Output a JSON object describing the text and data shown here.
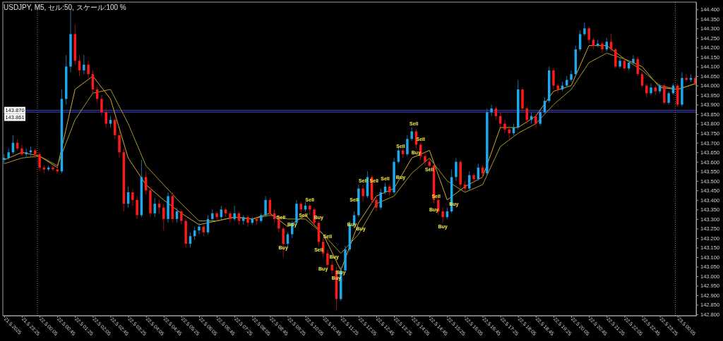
{
  "chart_data": {
    "type": "candlestick",
    "title": "USDJPY, M5, セル:50, スケール:100 %",
    "x": [
      "2025-05-21T22:45",
      "2025-05-21T22:55",
      "2025-05-21T23:05",
      "2025-05-21T23:15",
      "2025-05-21T23:25",
      "2025-05-21T23:35",
      "2025-05-21T23:45",
      "2025-05-21T23:55",
      "2025-05-22T00:05",
      "2025-05-22T00:15",
      "2025-05-22T00:25",
      "2025-05-22T00:35",
      "2025-05-22T00:45",
      "2025-05-22T00:55",
      "2025-05-22T01:05",
      "2025-05-22T01:15",
      "2025-05-22T01:25",
      "2025-05-22T01:35",
      "2025-05-22T01:45",
      "2025-05-22T01:55",
      "2025-05-22T02:05",
      "2025-05-22T02:15",
      "2025-05-22T02:25",
      "2025-05-22T02:35",
      "2025-05-22T02:45",
      "2025-05-22T02:55",
      "2025-05-22T03:05",
      "2025-05-22T03:15",
      "2025-05-22T03:25",
      "2025-05-22T03:35",
      "2025-05-22T03:45",
      "2025-05-22T03:55",
      "2025-05-22T04:05",
      "2025-05-22T04:15",
      "2025-05-22T04:25",
      "2025-05-22T04:35",
      "2025-05-22T04:45",
      "2025-05-22T04:55",
      "2025-05-22T05:05",
      "2025-05-22T05:15",
      "2025-05-22T05:25",
      "2025-05-22T05:35",
      "2025-05-22T05:45",
      "2025-05-22T05:55",
      "2025-05-22T06:05",
      "2025-05-22T06:15",
      "2025-05-22T06:25",
      "2025-05-22T06:35",
      "2025-05-22T06:45",
      "2025-05-22T06:55",
      "2025-05-22T07:05",
      "2025-05-22T07:15",
      "2025-05-22T07:25",
      "2025-05-22T07:35",
      "2025-05-22T07:45",
      "2025-05-22T07:55",
      "2025-05-22T08:05",
      "2025-05-22T08:15",
      "2025-05-22T08:25",
      "2025-05-22T08:35",
      "2025-05-22T08:45",
      "2025-05-22T08:55",
      "2025-05-22T09:05",
      "2025-05-22T09:15",
      "2025-05-22T09:25",
      "2025-05-22T09:35",
      "2025-05-22T09:45",
      "2025-05-22T09:55",
      "2025-05-22T10:05",
      "2025-05-22T10:15",
      "2025-05-22T10:25",
      "2025-05-22T10:35",
      "2025-05-22T10:45",
      "2025-05-22T10:55",
      "2025-05-22T11:05",
      "2025-05-22T11:15",
      "2025-05-22T11:25",
      "2025-05-22T11:35",
      "2025-05-22T11:45",
      "2025-05-22T11:55",
      "2025-05-22T12:05",
      "2025-05-22T12:15",
      "2025-05-22T12:25",
      "2025-05-22T12:35",
      "2025-05-22T12:45",
      "2025-05-22T12:55",
      "2025-05-22T13:05",
      "2025-05-22T13:15",
      "2025-05-22T13:25",
      "2025-05-22T13:35",
      "2025-05-22T13:45",
      "2025-05-22T13:55",
      "2025-05-22T14:05",
      "2025-05-22T14:15",
      "2025-05-22T14:25",
      "2025-05-22T14:35",
      "2025-05-22T14:45",
      "2025-05-22T14:55",
      "2025-05-22T15:05",
      "2025-05-22T15:15",
      "2025-05-22T15:25",
      "2025-05-22T15:35",
      "2025-05-22T15:45",
      "2025-05-22T15:55",
      "2025-05-22T16:05",
      "2025-05-22T16:15",
      "2025-05-22T16:25",
      "2025-05-22T16:35",
      "2025-05-22T16:45",
      "2025-05-22T16:55",
      "2025-05-22T17:05",
      "2025-05-22T17:15",
      "2025-05-22T17:25",
      "2025-05-22T17:35",
      "2025-05-22T17:45",
      "2025-05-22T17:55",
      "2025-05-22T18:05",
      "2025-05-22T18:15",
      "2025-05-22T18:25",
      "2025-05-22T18:35",
      "2025-05-22T18:45",
      "2025-05-22T18:55",
      "2025-05-22T19:05",
      "2025-05-22T19:15",
      "2025-05-22T19:25",
      "2025-05-22T19:35",
      "2025-05-22T19:45",
      "2025-05-22T19:55",
      "2025-05-22T20:05",
      "2025-05-22T20:15",
      "2025-05-22T20:25",
      "2025-05-22T20:35",
      "2025-05-22T20:45",
      "2025-05-22T20:55",
      "2025-05-22T21:05",
      "2025-05-22T21:15",
      "2025-05-22T21:25",
      "2025-05-22T21:35",
      "2025-05-22T21:45",
      "2025-05-22T21:55",
      "2025-05-22T22:05",
      "2025-05-22T22:15",
      "2025-05-22T22:25",
      "2025-05-22T22:35",
      "2025-05-22T22:45",
      "2025-05-22T22:55",
      "2025-05-22T23:05",
      "2025-05-22T23:15",
      "2025-05-22T23:25",
      "2025-05-22T23:35",
      "2025-05-22T23:45",
      "2025-05-22T23:55",
      "2025-05-23T00:05",
      "2025-05-23T00:15",
      "2025-05-23T00:25",
      "2025-05-23T00:35",
      "2025-05-23T00:45"
    ],
    "ohlc": [
      [
        143.61,
        143.64,
        143.59,
        143.62
      ],
      [
        143.62,
        143.67,
        143.61,
        143.65
      ],
      [
        143.65,
        143.74,
        143.64,
        143.7
      ],
      [
        143.7,
        143.72,
        143.66,
        143.67
      ],
      [
        143.67,
        143.69,
        143.63,
        143.64
      ],
      [
        143.64,
        143.67,
        143.62,
        143.65
      ],
      [
        143.65,
        143.68,
        143.63,
        143.66
      ],
      [
        143.66,
        143.67,
        143.62,
        143.64
      ],
      [
        143.64,
        143.65,
        143.55,
        143.57
      ],
      [
        143.57,
        143.58,
        143.54,
        143.56
      ],
      [
        143.56,
        143.58,
        143.55,
        143.57
      ],
      [
        143.57,
        143.58,
        143.55,
        143.56
      ],
      [
        143.56,
        143.58,
        143.54,
        143.55
      ],
      [
        143.55,
        143.98,
        143.54,
        143.93
      ],
      [
        143.93,
        144.16,
        143.9,
        144.1
      ],
      [
        144.1,
        144.4,
        144.07,
        144.27
      ],
      [
        144.27,
        144.32,
        144.11,
        144.13
      ],
      [
        144.13,
        144.16,
        144.05,
        144.08
      ],
      [
        144.08,
        144.16,
        144.06,
        144.11
      ],
      [
        144.11,
        144.13,
        144.04,
        144.06
      ],
      [
        144.06,
        144.08,
        143.96,
        143.98
      ],
      [
        143.98,
        144.0,
        143.91,
        143.93
      ],
      [
        143.93,
        143.95,
        143.84,
        143.86
      ],
      [
        143.86,
        143.88,
        143.78,
        143.8
      ],
      [
        143.8,
        143.84,
        143.78,
        143.82
      ],
      [
        143.82,
        143.83,
        143.72,
        143.74
      ],
      [
        143.74,
        143.76,
        143.62,
        143.65
      ],
      [
        143.65,
        143.67,
        143.34,
        143.38
      ],
      [
        143.38,
        143.47,
        143.36,
        143.44
      ],
      [
        143.44,
        143.46,
        143.37,
        143.4
      ],
      [
        143.4,
        143.42,
        143.3,
        143.32
      ],
      [
        143.32,
        143.61,
        143.31,
        143.52
      ],
      [
        143.52,
        143.55,
        143.43,
        143.45
      ],
      [
        143.45,
        143.47,
        143.31,
        143.33
      ],
      [
        143.33,
        143.41,
        143.31,
        143.38
      ],
      [
        143.38,
        143.4,
        143.33,
        143.36
      ],
      [
        143.36,
        143.38,
        143.24,
        143.3
      ],
      [
        143.3,
        143.44,
        143.28,
        143.42
      ],
      [
        143.42,
        143.44,
        143.28,
        143.3
      ],
      [
        143.3,
        143.36,
        143.28,
        143.34
      ],
      [
        143.34,
        143.35,
        143.27,
        143.29
      ],
      [
        143.29,
        143.3,
        143.15,
        143.17
      ],
      [
        143.17,
        143.23,
        143.15,
        143.21
      ],
      [
        143.21,
        143.26,
        143.19,
        143.24
      ],
      [
        143.24,
        143.28,
        143.22,
        143.26
      ],
      [
        143.26,
        143.27,
        143.21,
        143.23
      ],
      [
        143.23,
        143.32,
        143.22,
        143.3
      ],
      [
        143.3,
        143.35,
        143.29,
        143.33
      ],
      [
        143.33,
        143.34,
        143.29,
        143.31
      ],
      [
        143.31,
        143.37,
        143.3,
        143.35
      ],
      [
        143.35,
        143.36,
        143.31,
        143.33
      ],
      [
        143.33,
        143.34,
        143.28,
        143.3
      ],
      [
        143.3,
        143.37,
        143.29,
        143.33
      ],
      [
        143.33,
        143.34,
        143.27,
        143.29
      ],
      [
        143.29,
        143.32,
        143.27,
        143.31
      ],
      [
        143.31,
        143.32,
        143.26,
        143.28
      ],
      [
        143.28,
        143.31,
        143.27,
        143.3
      ],
      [
        143.3,
        143.31,
        143.27,
        143.29
      ],
      [
        143.29,
        143.33,
        143.28,
        143.32
      ],
      [
        143.32,
        143.42,
        143.31,
        143.4
      ],
      [
        143.4,
        143.41,
        143.31,
        143.33
      ],
      [
        143.33,
        143.35,
        143.28,
        143.3
      ],
      [
        143.3,
        143.31,
        143.23,
        143.25
      ],
      [
        143.25,
        143.26,
        143.1,
        143.17
      ],
      [
        143.17,
        143.23,
        143.15,
        143.22
      ],
      [
        143.22,
        143.29,
        143.2,
        143.28
      ],
      [
        143.28,
        143.4,
        143.27,
        143.38
      ],
      [
        143.38,
        143.39,
        143.33,
        143.35
      ],
      [
        143.35,
        143.39,
        143.34,
        143.37
      ],
      [
        143.37,
        143.38,
        143.32,
        143.35
      ],
      [
        143.35,
        143.36,
        143.26,
        143.28
      ],
      [
        143.28,
        143.29,
        143.16,
        143.18
      ],
      [
        143.18,
        143.2,
        143.1,
        143.12
      ],
      [
        143.12,
        143.14,
        143.04,
        143.06
      ],
      [
        143.06,
        143.08,
        143.01,
        143.03
      ],
      [
        143.03,
        143.05,
        142.82,
        142.88
      ],
      [
        142.88,
        143.05,
        142.87,
        143.03
      ],
      [
        143.03,
        143.16,
        143.02,
        143.14
      ],
      [
        143.14,
        143.29,
        143.13,
        143.27
      ],
      [
        143.27,
        143.34,
        143.25,
        143.32
      ],
      [
        143.32,
        143.48,
        143.31,
        143.46
      ],
      [
        143.46,
        143.48,
        143.39,
        143.42
      ],
      [
        143.42,
        143.55,
        143.41,
        143.52
      ],
      [
        143.52,
        143.53,
        143.38,
        143.4
      ],
      [
        143.4,
        143.42,
        143.34,
        143.36
      ],
      [
        143.36,
        143.46,
        143.35,
        143.44
      ],
      [
        143.44,
        143.49,
        143.43,
        143.47
      ],
      [
        143.47,
        143.48,
        143.42,
        143.44
      ],
      [
        143.44,
        143.62,
        143.43,
        143.6
      ],
      [
        143.6,
        143.68,
        143.59,
        143.66
      ],
      [
        143.66,
        143.67,
        143.62,
        143.64
      ],
      [
        143.64,
        143.74,
        143.63,
        143.72
      ],
      [
        143.72,
        143.78,
        143.71,
        143.76
      ],
      [
        143.76,
        143.77,
        143.67,
        143.69
      ],
      [
        143.69,
        143.7,
        143.61,
        143.63
      ],
      [
        143.63,
        143.65,
        143.58,
        143.6
      ],
      [
        143.6,
        143.62,
        143.56,
        143.58
      ],
      [
        143.58,
        143.59,
        143.38,
        143.4
      ],
      [
        143.4,
        143.42,
        143.32,
        143.34
      ],
      [
        143.34,
        143.36,
        143.28,
        143.31
      ],
      [
        143.31,
        143.36,
        143.3,
        143.34
      ],
      [
        143.34,
        143.56,
        143.33,
        143.52
      ],
      [
        143.52,
        143.62,
        143.5,
        143.6
      ],
      [
        143.6,
        143.61,
        143.46,
        143.48
      ],
      [
        143.48,
        143.5,
        143.44,
        143.46
      ],
      [
        143.46,
        143.55,
        143.45,
        143.53
      ],
      [
        143.53,
        143.54,
        143.49,
        143.51
      ],
      [
        143.51,
        143.59,
        143.5,
        143.57
      ],
      [
        143.57,
        143.58,
        143.52,
        143.54
      ],
      [
        143.54,
        143.88,
        143.53,
        143.86
      ],
      [
        143.86,
        143.9,
        143.84,
        143.88
      ],
      [
        143.88,
        143.89,
        143.82,
        143.84
      ],
      [
        143.84,
        143.86,
        143.78,
        143.8
      ],
      [
        143.8,
        143.82,
        143.75,
        143.77
      ],
      [
        143.77,
        143.79,
        143.72,
        143.75
      ],
      [
        143.75,
        143.8,
        143.74,
        143.78
      ],
      [
        143.78,
        144.03,
        143.77,
        143.98
      ],
      [
        143.98,
        143.99,
        143.86,
        143.88
      ],
      [
        143.88,
        143.89,
        143.8,
        143.82
      ],
      [
        143.82,
        143.86,
        143.8,
        143.84
      ],
      [
        143.84,
        143.85,
        143.78,
        143.8
      ],
      [
        143.8,
        143.88,
        143.79,
        143.86
      ],
      [
        143.86,
        143.94,
        143.85,
        143.92
      ],
      [
        143.92,
        144.1,
        143.91,
        144.08
      ],
      [
        144.08,
        144.09,
        143.98,
        144.0
      ],
      [
        144.0,
        144.01,
        143.96,
        143.98
      ],
      [
        143.98,
        144.02,
        143.97,
        144.0
      ],
      [
        144.0,
        144.05,
        143.99,
        144.03
      ],
      [
        144.03,
        144.08,
        144.02,
        144.06
      ],
      [
        144.06,
        144.21,
        144.05,
        144.19
      ],
      [
        144.19,
        144.29,
        144.18,
        144.27
      ],
      [
        144.27,
        144.33,
        144.26,
        144.3
      ],
      [
        144.3,
        144.31,
        144.22,
        144.24
      ],
      [
        144.24,
        144.25,
        144.19,
        144.21
      ],
      [
        144.21,
        144.24,
        144.2,
        144.22
      ],
      [
        144.22,
        144.23,
        144.17,
        144.19
      ],
      [
        144.19,
        144.25,
        144.18,
        144.23
      ],
      [
        144.23,
        144.27,
        144.18,
        144.19
      ],
      [
        144.19,
        144.2,
        144.09,
        144.1
      ],
      [
        144.1,
        144.15,
        144.09,
        144.13
      ],
      [
        144.13,
        144.14,
        144.08,
        144.09
      ],
      [
        144.09,
        144.13,
        144.08,
        144.12
      ],
      [
        144.12,
        144.16,
        144.11,
        144.14
      ],
      [
        144.14,
        144.15,
        144.05,
        144.06
      ],
      [
        144.06,
        144.07,
        143.99,
        144.0
      ],
      [
        144.0,
        144.01,
        143.94,
        143.96
      ],
      [
        143.96,
        144.01,
        143.95,
        143.99
      ],
      [
        143.99,
        144.0,
        143.95,
        143.97
      ],
      [
        143.97,
        144.01,
        143.96,
        144.0
      ],
      [
        144.0,
        144.01,
        143.9,
        143.91
      ],
      [
        143.91,
        143.97,
        143.9,
        143.96
      ],
      [
        143.96,
        144.01,
        143.95,
        144.0
      ],
      [
        144.0,
        144.01,
        143.89,
        143.9
      ],
      [
        143.9,
        144.07,
        143.89,
        144.04
      ],
      [
        144.04,
        144.06,
        144.02,
        144.03
      ],
      [
        144.03,
        144.06,
        144.02,
        144.04
      ],
      [
        144.04,
        144.05,
        144.0,
        144.01
      ]
    ],
    "series": [
      {
        "type": "line",
        "color": "#d8a830",
        "x": [
          "2025-05-21T22:45",
          "2025-05-21T23:25",
          "2025-05-22T00:05",
          "2025-05-22T00:45",
          "2025-05-22T01:25",
          "2025-05-22T02:05",
          "2025-05-22T02:45",
          "2025-05-22T03:25",
          "2025-05-22T04:05",
          "2025-05-22T04:45",
          "2025-05-22T05:25",
          "2025-05-22T06:05",
          "2025-05-22T06:45",
          "2025-05-22T07:25",
          "2025-05-22T08:05",
          "2025-05-22T08:45",
          "2025-05-22T09:25",
          "2025-05-22T10:05",
          "2025-05-22T10:45",
          "2025-05-22T11:25",
          "2025-05-22T12:05",
          "2025-05-22T12:45",
          "2025-05-22T13:25",
          "2025-05-22T14:05",
          "2025-05-22T14:45",
          "2025-05-22T15:25",
          "2025-05-22T16:05",
          "2025-05-22T16:45",
          "2025-05-22T17:25",
          "2025-05-22T18:05",
          "2025-05-22T18:45",
          "2025-05-22T19:25",
          "2025-05-22T20:05",
          "2025-05-22T20:45",
          "2025-05-22T21:25",
          "2025-05-22T22:05",
          "2025-05-22T22:45",
          "2025-05-22T23:25",
          "2025-05-23T00:05",
          "2025-05-23T00:45"
        ],
        "values": [
          143.61,
          143.65,
          143.63,
          143.57,
          143.98,
          144.05,
          143.93,
          143.62,
          143.48,
          143.4,
          143.33,
          143.27,
          143.29,
          143.31,
          143.3,
          143.33,
          143.26,
          143.32,
          143.22,
          143.03,
          143.28,
          143.42,
          143.46,
          143.62,
          143.66,
          143.4,
          143.47,
          143.52,
          143.78,
          143.78,
          143.84,
          143.97,
          144.0,
          144.21,
          144.21,
          144.14,
          144.1,
          143.99,
          143.98,
          144.01
        ]
      },
      {
        "type": "line",
        "color": "#a89820",
        "x": [
          "2025-05-21T22:45",
          "2025-05-21T23:25",
          "2025-05-22T00:05",
          "2025-05-22T00:45",
          "2025-05-22T01:25",
          "2025-05-22T02:05",
          "2025-05-22T02:45",
          "2025-05-22T03:25",
          "2025-05-22T04:05",
          "2025-05-22T04:45",
          "2025-05-22T05:25",
          "2025-05-22T06:05",
          "2025-05-22T06:45",
          "2025-05-22T07:25",
          "2025-05-22T08:05",
          "2025-05-22T08:45",
          "2025-05-22T09:25",
          "2025-05-22T10:05",
          "2025-05-22T10:45",
          "2025-05-22T11:25",
          "2025-05-22T12:05",
          "2025-05-22T12:45",
          "2025-05-22T13:25",
          "2025-05-22T14:05",
          "2025-05-22T14:45",
          "2025-05-22T15:25",
          "2025-05-22T16:05",
          "2025-05-22T16:45",
          "2025-05-22T17:25",
          "2025-05-22T18:05",
          "2025-05-22T18:45",
          "2025-05-22T19:25",
          "2025-05-22T20:05",
          "2025-05-22T20:45",
          "2025-05-22T21:25",
          "2025-05-22T22:05",
          "2025-05-22T22:45",
          "2025-05-22T23:25",
          "2025-05-23T00:05",
          "2025-05-23T00:45"
        ],
        "values": [
          143.59,
          143.62,
          143.63,
          143.58,
          143.82,
          143.96,
          143.98,
          143.8,
          143.58,
          143.48,
          143.38,
          143.29,
          143.29,
          143.31,
          143.3,
          143.32,
          143.3,
          143.3,
          143.22,
          143.12,
          143.22,
          143.38,
          143.42,
          143.54,
          143.62,
          143.5,
          143.44,
          143.48,
          143.68,
          143.75,
          143.8,
          143.9,
          143.98,
          144.12,
          144.17,
          144.14,
          144.08,
          144.0,
          143.98,
          144.01
        ]
      }
    ],
    "xlim": [
      "2025-05-21T22:42",
      "2025-05-23T00:47"
    ],
    "xticks": [
      {
        "value": "2025-05-21T22:45",
        "label": "21.5.2025"
      },
      {
        "value": "2025-05-21T23:25",
        "label": "21.5 23:25"
      },
      {
        "value": "2025-05-22T00:05",
        "label": "22.5 00:05"
      },
      {
        "value": "2025-05-22T00:45",
        "label": "22.5 00:45"
      },
      {
        "value": "2025-05-22T01:25",
        "label": "22.5 01:25"
      },
      {
        "value": "2025-05-22T02:05",
        "label": "22.5 02:05"
      },
      {
        "value": "2025-05-22T02:45",
        "label": "22.5 02:45"
      },
      {
        "value": "2025-05-22T03:25",
        "label": "22.5 03:25"
      },
      {
        "value": "2025-05-22T04:05",
        "label": "22.5 04:05"
      },
      {
        "value": "2025-05-22T04:45",
        "label": "22.5 04:45"
      },
      {
        "value": "2025-05-22T05:25",
        "label": "22.5 05:25"
      },
      {
        "value": "2025-05-22T06:05",
        "label": "22.5 06:05"
      },
      {
        "value": "2025-05-22T06:45",
        "label": "22.5 06:45"
      },
      {
        "value": "2025-05-22T07:25",
        "label": "22.5 07:25"
      },
      {
        "value": "2025-05-22T08:05",
        "label": "22.5 08:05"
      },
      {
        "value": "2025-05-22T08:45",
        "label": "22.5 08:45"
      },
      {
        "value": "2025-05-22T09:25",
        "label": "22.5 09:25"
      },
      {
        "value": "2025-05-22T10:05",
        "label": "22.5 10:05"
      },
      {
        "value": "2025-05-22T10:45",
        "label": "22.5 10:45"
      },
      {
        "value": "2025-05-22T11:25",
        "label": "22.5 11:25"
      },
      {
        "value": "2025-05-22T12:05",
        "label": "22.5 12:05"
      },
      {
        "value": "2025-05-22T12:45",
        "label": "22.5 12:45"
      },
      {
        "value": "2025-05-22T13:25",
        "label": "22.5 13:25"
      },
      {
        "value": "2025-05-22T14:05",
        "label": "22.5 14:05"
      },
      {
        "value": "2025-05-22T14:45",
        "label": "22.5 14:45"
      },
      {
        "value": "2025-05-22T15:25",
        "label": "22.5 15:25"
      },
      {
        "value": "2025-05-22T16:05",
        "label": "22.5 16:05"
      },
      {
        "value": "2025-05-22T16:45",
        "label": "22.5 16:45"
      },
      {
        "value": "2025-05-22T17:25",
        "label": "22.5 17:25"
      },
      {
        "value": "2025-05-22T18:05",
        "label": "22.5 18:05"
      },
      {
        "value": "2025-05-22T18:45",
        "label": "22.5 18:45"
      },
      {
        "value": "2025-05-22T19:25",
        "label": "22.5 19:25"
      },
      {
        "value": "2025-05-22T20:05",
        "label": "22.5 20:05"
      },
      {
        "value": "2025-05-22T20:45",
        "label": "22.5 20:45"
      },
      {
        "value": "2025-05-22T21:25",
        "label": "22.5 21:25"
      },
      {
        "value": "2025-05-22T22:05",
        "label": "22.5 22:05"
      },
      {
        "value": "2025-05-22T22:45",
        "label": "22.5 22:45"
      },
      {
        "value": "2025-05-22T23:25",
        "label": "22.5 23:25"
      },
      {
        "value": "2025-05-23T00:05",
        "label": "23.5 00:05"
      }
    ],
    "ylim": [
      142.793,
      144.438
    ],
    "yticks": [
      {
        "value": 142.8,
        "label": "142.800"
      },
      {
        "value": 142.85,
        "label": "142.850"
      },
      {
        "value": 142.9,
        "label": "142.900"
      },
      {
        "value": 142.95,
        "label": "142.950"
      },
      {
        "value": 143.0,
        "label": "143.000"
      },
      {
        "value": 143.05,
        "label": "143.050"
      },
      {
        "value": 143.1,
        "label": "143.100"
      },
      {
        "value": 143.15,
        "label": "143.150"
      },
      {
        "value": 143.2,
        "label": "143.200"
      },
      {
        "value": 143.25,
        "label": "143.250"
      },
      {
        "value": 143.3,
        "label": "143.300"
      },
      {
        "value": 143.35,
        "label": "143.350"
      },
      {
        "value": 143.4,
        "label": "143.400"
      },
      {
        "value": 143.45,
        "label": "143.450"
      },
      {
        "value": 143.5,
        "label": "143.500"
      },
      {
        "value": 143.55,
        "label": "143.550"
      },
      {
        "value": 143.6,
        "label": "143.600"
      },
      {
        "value": 143.65,
        "label": "143.650"
      },
      {
        "value": 143.7,
        "label": "143.700"
      },
      {
        "value": 143.75,
        "label": "143.750"
      },
      {
        "value": 143.8,
        "label": "143.800"
      },
      {
        "value": 143.85,
        "label": "143.850"
      },
      {
        "value": 143.9,
        "label": "143.900"
      },
      {
        "value": 143.95,
        "label": "143.950"
      },
      {
        "value": 144.0,
        "label": "144.000"
      },
      {
        "value": 144.05,
        "label": "144.050"
      },
      {
        "value": 144.1,
        "label": "144.100"
      },
      {
        "value": 144.15,
        "label": "144.150"
      },
      {
        "value": 144.2,
        "label": "144.200"
      },
      {
        "value": 144.25,
        "label": "144.250"
      },
      {
        "value": 144.3,
        "label": "144.300"
      },
      {
        "value": 144.35,
        "label": "144.350"
      },
      {
        "value": 144.4,
        "label": "144.400"
      }
    ],
    "ref_lines": [
      {
        "axis": "x",
        "value": "2025-05-22T00:00",
        "color": "#808080",
        "line_style": "dotted"
      },
      {
        "axis": "x",
        "value": "2025-05-23T00:00",
        "color": "#808080",
        "line_style": "dotted"
      },
      {
        "axis": "y",
        "value": 143.87,
        "label": "143.870",
        "color": "#4646c8",
        "line_style": "solid"
      },
      {
        "axis": "y",
        "value": 143.861,
        "label": "143.861",
        "color": "#4646c8",
        "line_style": "solid"
      }
    ],
    "annotations": [
      {
        "text": "Sell",
        "x": "2025-05-22T14:10",
        "y": 143.78
      },
      {
        "text": "Sell",
        "x": "2025-05-22T14:25",
        "y": 143.7
      },
      {
        "text": "Sell",
        "x": "2025-05-22T13:40",
        "y": 143.66
      },
      {
        "text": "Buy",
        "x": "2025-05-22T14:15",
        "y": 143.67
      },
      {
        "text": "Buy",
        "x": "2025-05-22T13:40",
        "y": 143.54
      },
      {
        "text": "Sell",
        "x": "2025-05-22T12:15",
        "y": 143.48
      },
      {
        "text": "Sell",
        "x": "2025-05-22T12:40",
        "y": 143.48
      },
      {
        "text": "Sell",
        "x": "2025-05-22T13:05",
        "y": 143.49
      },
      {
        "text": "Sell",
        "x": "2025-05-22T11:55",
        "y": 143.38
      },
      {
        "text": "Sell",
        "x": "2025-05-22T10:15",
        "y": 143.38
      },
      {
        "text": "Sell",
        "x": "2025-05-22T10:00",
        "y": 143.34
      },
      {
        "text": "Sell",
        "x": "2025-05-22T09:10",
        "y": 143.29
      },
      {
        "text": "Buy",
        "x": "2025-05-22T11:50",
        "y": 143.25
      },
      {
        "text": "Buy",
        "x": "2025-05-22T12:10",
        "y": 143.27
      },
      {
        "text": "Buy",
        "x": "2025-05-22T09:35",
        "y": 143.25
      },
      {
        "text": "Buy",
        "x": "2025-05-22T09:15",
        "y": 143.17
      },
      {
        "text": "Sell",
        "x": "2025-05-22T10:35",
        "y": 143.16
      },
      {
        "text": "Sell",
        "x": "2025-05-22T10:55",
        "y": 143.19
      },
      {
        "text": "Buy",
        "x": "2025-05-22T10:35",
        "y": 143.29
      },
      {
        "text": "Buy",
        "x": "2025-05-22T10:45",
        "y": 143.06
      },
      {
        "text": "Buy",
        "x": "2025-05-22T11:10",
        "y": 143.08
      },
      {
        "text": "Buy",
        "x": "2025-05-22T11:25",
        "y": 143.0
      },
      {
        "text": "Buy",
        "x": "2025-05-22T11:15",
        "y": 142.97
      },
      {
        "text": "Sell",
        "x": "2025-05-22T14:45",
        "y": 143.58
      },
      {
        "text": "Sell",
        "x": "2025-05-22T15:00",
        "y": 143.44
      },
      {
        "text": "Buy",
        "x": "2025-05-22T15:15",
        "y": 143.28
      },
      {
        "text": "Buy",
        "x": "2025-05-22T15:40",
        "y": 143.4
      },
      {
        "text": "Buy",
        "x": "2025-05-22T14:55",
        "y": 143.37
      }
    ]
  }
}
